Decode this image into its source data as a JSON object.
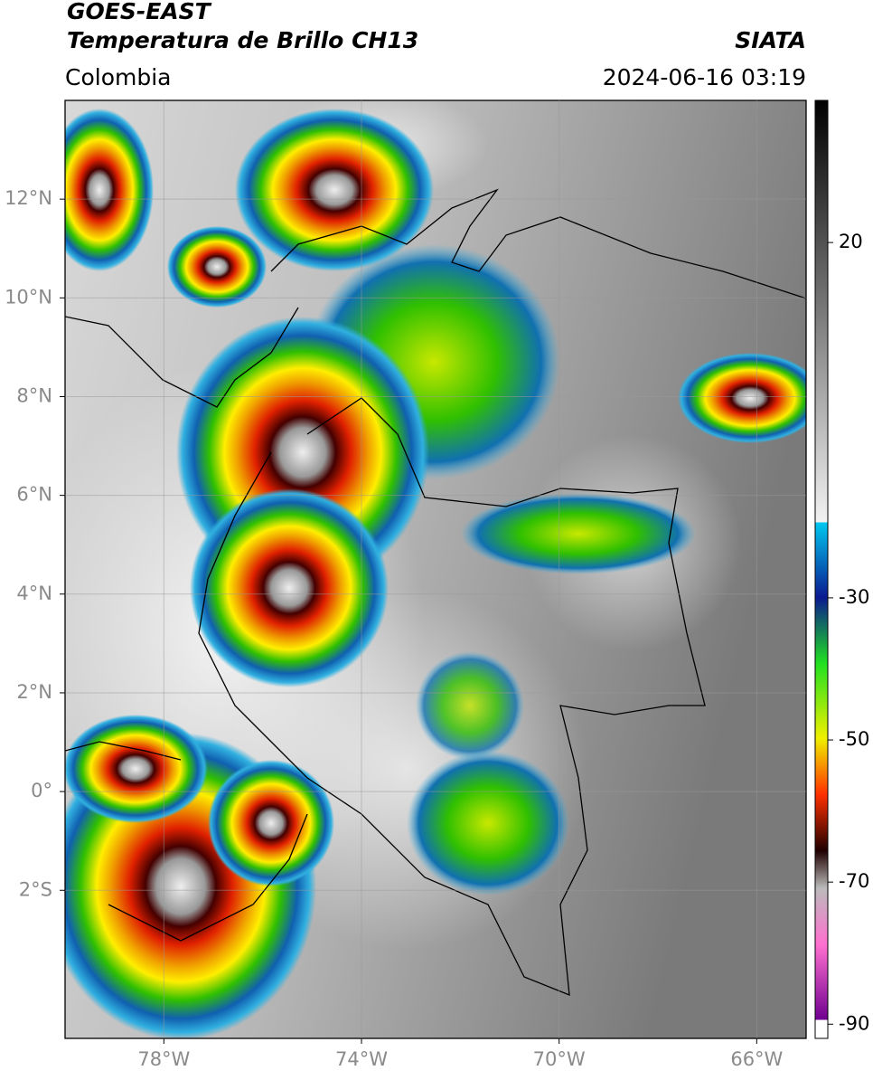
{
  "header": {
    "satellite": "GOES-EAST",
    "product": "Temperatura de Brillo CH13",
    "region": "Colombia",
    "source": "SIATA",
    "datetime": "2024-06-16 03:19"
  },
  "map": {
    "lon_range": [
      -80,
      -65
    ],
    "lat_range": [
      -5,
      14
    ],
    "lon_ticks": [
      {
        "value": -78,
        "label": "78°W"
      },
      {
        "value": -74,
        "label": "74°W"
      },
      {
        "value": -70,
        "label": "70°W"
      },
      {
        "value": -66,
        "label": "66°W"
      }
    ],
    "lat_ticks": [
      {
        "value": 12,
        "label": "12°N"
      },
      {
        "value": 10,
        "label": "10°N"
      },
      {
        "value": 8,
        "label": "8°N"
      },
      {
        "value": 6,
        "label": "6°N"
      },
      {
        "value": 4,
        "label": "4°N"
      },
      {
        "value": 2,
        "label": "2°N"
      },
      {
        "value": 0,
        "label": "0°"
      },
      {
        "value": -2,
        "label": "2°S"
      }
    ]
  },
  "colorbar": {
    "range": [
      -92,
      40
    ],
    "ticks": [
      -90,
      -70,
      -50,
      -30,
      20
    ]
  }
}
